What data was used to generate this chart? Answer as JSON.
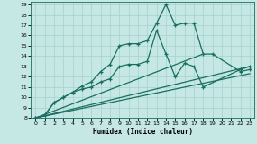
{
  "xlabel": "Humidex (Indice chaleur)",
  "background_color": "#c5e8e5",
  "grid_color": "#a8d0cc",
  "line_color": "#1a6e60",
  "xlim": [
    -0.5,
    23.5
  ],
  "ylim": [
    8,
    19.3
  ],
  "yticks": [
    8,
    9,
    10,
    11,
    12,
    13,
    14,
    15,
    16,
    17,
    18,
    19
  ],
  "xticks": [
    0,
    1,
    2,
    3,
    4,
    5,
    6,
    7,
    8,
    9,
    10,
    11,
    12,
    13,
    14,
    15,
    16,
    17,
    18,
    19,
    20,
    21,
    22,
    23
  ],
  "curve1_x": [
    0,
    1,
    2,
    3,
    4,
    5,
    6,
    7,
    8,
    9,
    10,
    11,
    12,
    13,
    14,
    15,
    16,
    17,
    18,
    19,
    22,
    23
  ],
  "curve1_y": [
    8.0,
    8.3,
    9.5,
    10.0,
    10.5,
    11.1,
    11.5,
    12.5,
    13.2,
    15.0,
    15.2,
    15.2,
    15.5,
    17.2,
    19.0,
    17.0,
    17.2,
    17.2,
    14.2,
    14.2,
    12.5,
    12.7
  ],
  "curve2_x": [
    0,
    1,
    2,
    3,
    4,
    5,
    6,
    7,
    8,
    9,
    10,
    11,
    12,
    13,
    14,
    15,
    16,
    17,
    18,
    22,
    23
  ],
  "curve2_y": [
    8.0,
    8.3,
    9.5,
    10.0,
    10.5,
    10.8,
    11.0,
    11.5,
    11.8,
    13.0,
    13.2,
    13.2,
    13.5,
    16.5,
    14.2,
    12.0,
    13.3,
    13.0,
    11.0,
    12.7,
    13.0
  ],
  "line1": [
    [
      0,
      8.0
    ],
    [
      18,
      14.2
    ]
  ],
  "line2": [
    [
      0,
      8.0
    ],
    [
      23,
      13.0
    ]
  ],
  "line3": [
    [
      0,
      8.0
    ],
    [
      23,
      12.3
    ]
  ]
}
